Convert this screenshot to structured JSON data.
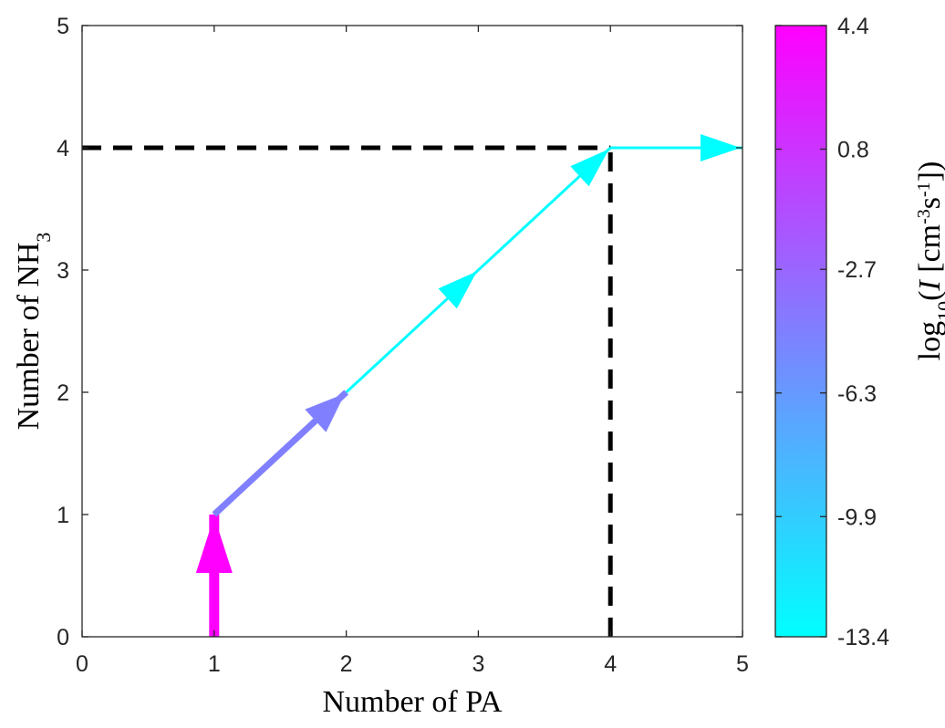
{
  "chart_data": {
    "type": "arrow-path",
    "xlabel": "Number of PA",
    "ylabel": {
      "main": "Number of NH",
      "sub": "3"
    },
    "xlim": [
      0,
      5
    ],
    "ylim": [
      0,
      5
    ],
    "xticks": [
      "0",
      "1",
      "2",
      "3",
      "4",
      "5"
    ],
    "yticks": [
      "0",
      "1",
      "2",
      "3",
      "4",
      "5"
    ],
    "segments": [
      {
        "from": [
          1,
          0
        ],
        "to": [
          1,
          1
        ],
        "log10_rate": 4.4,
        "color": "#ff00ff",
        "weight": "heavy"
      },
      {
        "from": [
          1,
          1
        ],
        "to": [
          2,
          2
        ],
        "log10_rate": -2.0,
        "color": "#8080ff",
        "weight": "medium"
      },
      {
        "from": [
          2,
          2
        ],
        "to": [
          3,
          3
        ],
        "log10_rate": -13.4,
        "color": "#00ffff",
        "weight": "thin"
      },
      {
        "from": [
          3,
          3
        ],
        "to": [
          4,
          4
        ],
        "log10_rate": -13.4,
        "color": "#00ffff",
        "weight": "thin"
      },
      {
        "from": [
          4,
          4
        ],
        "to": [
          5,
          4
        ],
        "log10_rate": -13.4,
        "color": "#00ffff",
        "weight": "thin"
      }
    ],
    "dashed_guides": [
      {
        "orientation": "horizontal",
        "y": 4,
        "x_range": [
          0,
          4
        ]
      },
      {
        "orientation": "vertical",
        "x": 4,
        "y_range": [
          0,
          4
        ]
      }
    ],
    "colorbar": {
      "label": {
        "prefix": "log",
        "prefix_sub": "10",
        "open": "(",
        "var": "I",
        "units_a": " [cm",
        "exp1": "-3",
        "units_b": "s",
        "exp2": "-1",
        "close": "])"
      },
      "ticks": [
        "4.4",
        "0.8",
        "-2.7",
        "-6.3",
        "-9.9",
        "-13.4"
      ],
      "range": [
        -13.4,
        4.4
      ],
      "color_top": "#ff00ff",
      "color_bottom": "#00ffff"
    },
    "grid": false
  }
}
